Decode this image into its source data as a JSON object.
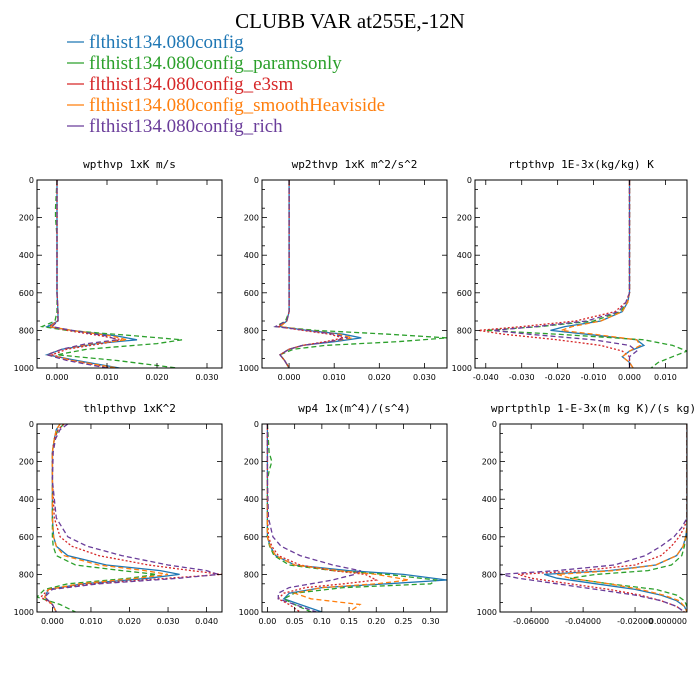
{
  "title": "CLUBB VAR at255E,-12N",
  "legend": [
    {
      "name": "flthist134.080config",
      "color": "#1f77b4"
    },
    {
      "name": "flthist134.080config_paramsonly",
      "color": "#2ca02c"
    },
    {
      "name": "flthist134.080config_e3sm",
      "color": "#d62728"
    },
    {
      "name": "flthist134.080config_smoothHeaviside",
      "color": "#ff7f0e"
    },
    {
      "name": "flthist134.080config_rich",
      "color": "#6a3d9a"
    }
  ],
  "chart_data": [
    {
      "type": "line",
      "title": "wpthvp  1xK m/s",
      "xlim": [
        -0.004,
        0.033
      ],
      "ylim": [
        1000,
        0
      ],
      "xticks": [
        "0.000",
        "0.010",
        "0.020",
        "0.030"
      ],
      "xtick_values": [
        0,
        0.01,
        0.02,
        0.03
      ],
      "yticks": [
        0,
        200,
        400,
        600,
        800,
        1000
      ],
      "y": [
        0,
        150,
        200,
        300,
        400,
        500,
        600,
        700,
        750,
        780,
        800,
        830,
        850,
        870,
        900,
        930,
        960,
        1000
      ],
      "series": [
        {
          "name": "flthist134.080config",
          "values": [
            0,
            0,
            0,
            0,
            0,
            0,
            0,
            0.0002,
            0.0002,
            -0.002,
            0.003,
            0.012,
            0.016,
            0.008,
            0.001,
            -0.002,
            0.004,
            0.0125
          ]
        },
        {
          "name": "flthist134.080config_paramsonly",
          "values": [
            0,
            -0.0003,
            -0.0003,
            0,
            0,
            0,
            0,
            0,
            -0.0004,
            -0.003,
            0.002,
            0.016,
            0.025,
            0.02,
            0.006,
            0.0,
            0.012,
            0.024
          ]
        },
        {
          "name": "flthist134.080config_e3sm",
          "values": [
            0,
            0,
            0,
            0,
            0,
            0,
            0,
            0.0002,
            0.0001,
            -0.0015,
            0.002,
            0.009,
            0.013,
            0.009,
            0.002,
            -0.001,
            0.003,
            0.011
          ]
        },
        {
          "name": "flthist134.080config_smoothHeaviside",
          "values": [
            0,
            0,
            0,
            0,
            0,
            0,
            0,
            0.0002,
            0.0002,
            -0.0015,
            0.003,
            0.011,
            0.014,
            0.007,
            0.001,
            -0.002,
            0.003,
            0.012
          ]
        },
        {
          "name": "flthist134.080config_rich",
          "values": [
            0,
            0,
            0,
            0,
            0,
            0,
            0,
            0.0002,
            0.0002,
            -0.001,
            0.003,
            0.01,
            0.012,
            0.006,
            0.001,
            -0.002,
            0.002,
            0.01
          ]
        }
      ]
    },
    {
      "type": "line",
      "title": "wp2thvp  1xK m^2/s^2",
      "xlim": [
        -0.006,
        0.035
      ],
      "ylim": [
        1000,
        0
      ],
      "xticks": [
        "0.000",
        "0.010",
        "0.020",
        "0.030"
      ],
      "xtick_values": [
        0,
        0.01,
        0.02,
        0.03
      ],
      "yticks": [
        0,
        200,
        400,
        600,
        800,
        1000
      ],
      "y": [
        0,
        200,
        400,
        600,
        700,
        750,
        780,
        800,
        820,
        840,
        860,
        880,
        900,
        930,
        960,
        1000
      ],
      "series": [
        {
          "name": "flthist134.080config",
          "values": [
            0,
            0,
            0,
            0,
            0,
            -0.0005,
            -0.002,
            0.004,
            0.012,
            0.016,
            0.01,
            0.003,
            0.0,
            -0.002,
            -0.001,
            0.0
          ]
        },
        {
          "name": "flthist134.080config_paramsonly",
          "values": [
            0,
            0,
            0,
            0,
            0,
            -0.0008,
            -0.003,
            0.006,
            0.022,
            0.035,
            0.024,
            0.008,
            0.001,
            -0.002,
            -0.001,
            0.0
          ]
        },
        {
          "name": "flthist134.080config_e3sm",
          "values": [
            0,
            0,
            0,
            0,
            0,
            -0.0005,
            -0.0025,
            0.003,
            0.009,
            0.012,
            0.008,
            0.003,
            0.0,
            -0.002,
            -0.001,
            0.0
          ]
        },
        {
          "name": "flthist134.080config_smoothHeaviside",
          "values": [
            0,
            0,
            0,
            0,
            0,
            -0.0005,
            -0.002,
            0.004,
            0.011,
            0.014,
            0.009,
            0.003,
            0.0,
            -0.002,
            -0.001,
            0.0
          ]
        },
        {
          "name": "flthist134.080config_rich",
          "values": [
            0,
            0,
            0,
            0,
            0,
            -0.0005,
            -0.003,
            0.004,
            0.01,
            0.013,
            0.009,
            0.003,
            0.0,
            -0.002,
            -0.001,
            0.0
          ]
        }
      ]
    },
    {
      "type": "line",
      "title": "rtpthvp  1E-3x(kg/kg) K",
      "xlim": [
        -0.043,
        0.016
      ],
      "ylim": [
        1000,
        0
      ],
      "xticks": [
        "-0.040",
        "-0.030",
        "-0.020",
        "-0.010",
        "0.000",
        "0.010"
      ],
      "xtick_values": [
        -0.04,
        -0.03,
        -0.02,
        -0.01,
        0,
        0.01
      ],
      "yticks": [
        0,
        200,
        400,
        600,
        800,
        1000
      ],
      "y": [
        0,
        200,
        400,
        500,
        600,
        650,
        700,
        750,
        780,
        800,
        820,
        850,
        880,
        910,
        940,
        970,
        1000
      ],
      "series": [
        {
          "name": "flthist134.080config",
          "values": [
            0,
            0,
            0,
            0,
            0,
            -0.0005,
            -0.002,
            -0.008,
            -0.018,
            -0.022,
            -0.012,
            0.002,
            0.004,
            0.0,
            -0.002,
            0.0,
            0.001
          ]
        },
        {
          "name": "flthist134.080config_paramsonly",
          "values": [
            0,
            0,
            0,
            0,
            0,
            -0.0005,
            -0.0025,
            -0.01,
            -0.025,
            -0.04,
            -0.02,
            0.004,
            0.012,
            0.016,
            0.012,
            0.008,
            0.006
          ]
        },
        {
          "name": "flthist134.080config_e3sm",
          "values": [
            0,
            0,
            0,
            0,
            0,
            -0.001,
            -0.004,
            -0.015,
            -0.03,
            -0.042,
            -0.035,
            -0.02,
            -0.008,
            -0.002,
            0.0,
            0.0,
            0.0
          ]
        },
        {
          "name": "flthist134.080config_smoothHeaviside",
          "values": [
            0,
            0,
            0,
            0,
            0,
            -0.0005,
            -0.002,
            -0.008,
            -0.016,
            -0.019,
            -0.01,
            0.002,
            0.003,
            0.0,
            -0.002,
            0.0,
            0.001
          ]
        },
        {
          "name": "flthist134.080config_rich",
          "values": [
            0,
            0,
            0,
            0,
            0,
            -0.001,
            -0.003,
            -0.012,
            -0.026,
            -0.038,
            -0.028,
            -0.01,
            0.0,
            0.002,
            0.0,
            0.0,
            0.0
          ]
        }
      ]
    },
    {
      "type": "line",
      "title": "thlpthvp  1xK^2",
      "xlim": [
        -0.004,
        0.044
      ],
      "ylim": [
        1000,
        0
      ],
      "xticks": [
        "0.000",
        "0.010",
        "0.020",
        "0.030",
        "0.040"
      ],
      "xtick_values": [
        0,
        0.01,
        0.02,
        0.03,
        0.04
      ],
      "yticks": [
        0,
        200,
        400,
        600,
        800,
        1000
      ],
      "y": [
        0,
        30,
        80,
        150,
        300,
        500,
        600,
        650,
        700,
        750,
        780,
        800,
        820,
        850,
        880,
        920,
        960,
        1000
      ],
      "series": [
        {
          "name": "flthist134.080config",
          "values": [
            0.002,
            0.001,
            0.0005,
            0.0,
            0.0,
            0.0,
            0.0003,
            0.001,
            0.004,
            0.014,
            0.028,
            0.033,
            0.025,
            0.008,
            -0.001,
            -0.002,
            0.0,
            0.001
          ]
        },
        {
          "name": "flthist134.080config_paramsonly",
          "values": [
            0.003,
            0.0015,
            0.0005,
            0.0,
            0.0,
            0.0,
            0.0,
            0.0002,
            0.001,
            0.006,
            0.018,
            0.027,
            0.02,
            0.004,
            -0.002,
            -0.004,
            0.002,
            0.006
          ]
        },
        {
          "name": "flthist134.080config_e3sm",
          "values": [
            0.003,
            0.0015,
            0.0005,
            0.0,
            0.0,
            0.0005,
            0.002,
            0.005,
            0.012,
            0.025,
            0.036,
            0.044,
            0.03,
            0.01,
            -0.001,
            -0.003,
            0.0,
            0.001
          ]
        },
        {
          "name": "flthist134.080config_smoothHeviside",
          "values": [
            0.002,
            0.001,
            0.0005,
            0.0,
            0.0,
            0.0,
            0.0003,
            0.001,
            0.003,
            0.012,
            0.024,
            0.03,
            0.022,
            0.007,
            -0.001,
            -0.002,
            0.0,
            0.001
          ]
        },
        {
          "name": "flthist134.080config_rich",
          "values": [
            0.004,
            0.002,
            0.0008,
            0.0002,
            0.0,
            0.001,
            0.004,
            0.009,
            0.018,
            0.03,
            0.04,
            0.043,
            0.033,
            0.012,
            0.0,
            -0.002,
            0.0,
            0.001
          ]
        }
      ]
    },
    {
      "type": "line",
      "title": "wp4  1x(m^4)/(s^4)",
      "xlim": [
        -0.01,
        0.33
      ],
      "ylim": [
        1000,
        0
      ],
      "xticks": [
        "0.00",
        "0.05",
        "0.10",
        "0.15",
        "0.20",
        "0.25",
        "0.30"
      ],
      "xtick_values": [
        0,
        0.05,
        0.1,
        0.15,
        0.2,
        0.25,
        0.3
      ],
      "yticks": [
        0,
        200,
        400,
        600,
        800,
        1000
      ],
      "y": [
        0,
        150,
        200,
        250,
        300,
        500,
        600,
        650,
        700,
        750,
        780,
        800,
        830,
        850,
        870,
        900,
        930,
        960,
        1000
      ],
      "series": [
        {
          "name": "flthist134.080config",
          "values": [
            0,
            0,
            0,
            0,
            0,
            0,
            0,
            0.005,
            0.015,
            0.05,
            0.15,
            0.25,
            0.33,
            0.22,
            0.1,
            0.04,
            0.03,
            0.06,
            0.1
          ]
        },
        {
          "name": "flthist134.080config_paramsonly",
          "values": [
            0,
            0.003,
            0.008,
            0.003,
            0,
            0,
            0,
            0.004,
            0.012,
            0.04,
            0.12,
            0.22,
            0.31,
            0.3,
            0.14,
            0.05,
            0.03,
            0.05,
            0.08
          ]
        },
        {
          "name": "flthist134.080config_e3sm",
          "values": [
            0,
            0,
            0,
            0,
            0,
            0,
            0.002,
            0.008,
            0.02,
            0.06,
            0.12,
            0.18,
            0.2,
            0.14,
            0.07,
            0.03,
            0.02,
            0.04,
            0.06
          ]
        },
        {
          "name": "flthist134.080config_smoothHeaviside",
          "values": [
            0,
            0,
            0,
            0,
            0,
            0,
            0,
            0.005,
            0.015,
            0.05,
            0.13,
            0.2,
            0.26,
            0.2,
            0.1,
            0.05,
            0.08,
            0.17,
            0.15
          ]
        },
        {
          "name": "flthist134.080config_rich",
          "values": [
            0,
            0,
            0,
            0,
            0,
            0.002,
            0.01,
            0.025,
            0.06,
            0.12,
            0.17,
            0.16,
            0.12,
            0.08,
            0.04,
            0.02,
            0.02,
            0.05,
            0.09
          ]
        }
      ]
    },
    {
      "type": "line",
      "title": "wprtpthlp  1-E-3x(m kg K)/(s kg)",
      "xlim": [
        -0.072,
        0.0
      ],
      "ylim": [
        1000,
        0
      ],
      "xticks": [
        "-0.06000",
        "-0.04000",
        "-0.02000",
        "0.000000"
      ],
      "xtick_values": [
        -0.06,
        -0.04,
        -0.02,
        0.0
      ],
      "yticks": [
        0,
        200,
        400,
        600,
        800,
        1000
      ],
      "y": [
        0,
        300,
        500,
        550,
        600,
        650,
        700,
        750,
        780,
        800,
        820,
        850,
        880,
        910,
        940,
        970,
        1000
      ],
      "series": [
        {
          "name": "flthist134.080config",
          "values": [
            0,
            0,
            0,
            0,
            -0.0005,
            -0.0015,
            -0.004,
            -0.012,
            -0.03,
            -0.055,
            -0.05,
            -0.035,
            -0.02,
            -0.01,
            -0.004,
            -0.001,
            0.0
          ]
        },
        {
          "name": "flthist134.080config_paramsonly",
          "values": [
            0,
            0,
            0,
            0,
            -0.0005,
            -0.001,
            -0.002,
            -0.006,
            -0.015,
            -0.035,
            -0.045,
            -0.03,
            -0.012,
            -0.004,
            -0.001,
            0.0,
            0.0
          ]
        },
        {
          "name": "flthist134.080config_e3sm",
          "values": [
            0,
            0,
            0,
            -0.001,
            -0.003,
            -0.006,
            -0.01,
            -0.02,
            -0.04,
            -0.065,
            -0.06,
            -0.045,
            -0.03,
            -0.018,
            -0.01,
            -0.004,
            -0.001
          ]
        },
        {
          "name": "flthist134.080config_smoothHeaviside",
          "values": [
            0,
            0,
            0,
            0,
            -0.0005,
            -0.0015,
            -0.004,
            -0.012,
            -0.028,
            -0.05,
            -0.045,
            -0.03,
            -0.018,
            -0.009,
            -0.003,
            -0.001,
            0.0
          ]
        },
        {
          "name": "flthist134.080config_rich",
          "values": [
            0,
            0,
            0,
            -0.002,
            -0.005,
            -0.01,
            -0.016,
            -0.028,
            -0.05,
            -0.072,
            -0.065,
            -0.05,
            -0.035,
            -0.02,
            -0.01,
            -0.004,
            -0.001
          ]
        }
      ]
    }
  ]
}
